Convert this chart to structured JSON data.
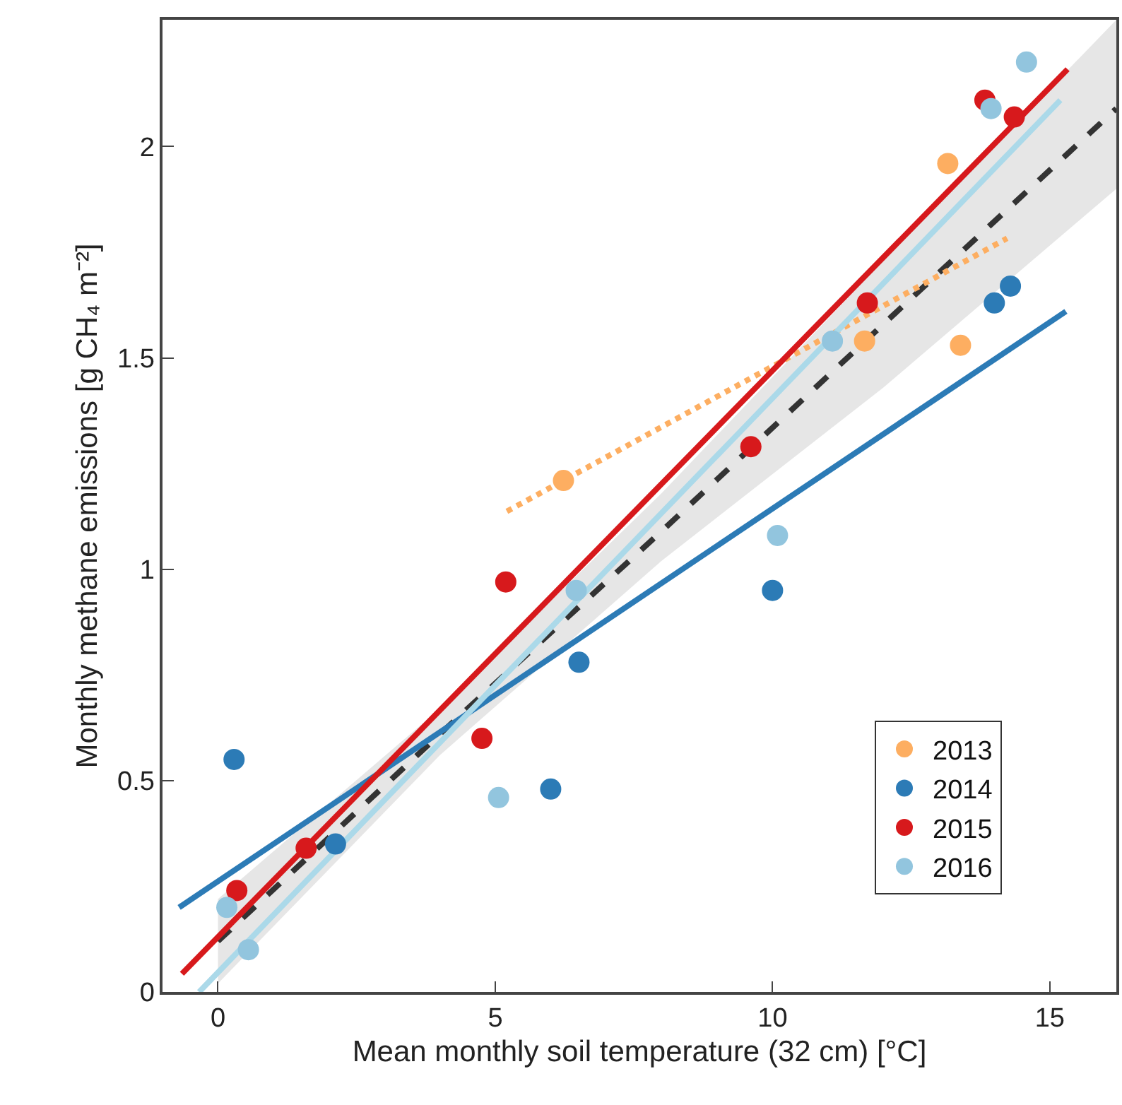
{
  "chart_data": {
    "type": "scatter",
    "xlabel": "Mean monthly soil temperature (32 cm) [°C]",
    "ylabel": "Monthly methane emissions [g CH₄ m⁻²]",
    "xlim": [
      -1,
      16.2
    ],
    "ylim": [
      0,
      2.3
    ],
    "xticks": [
      0,
      5,
      10,
      15
    ],
    "yticks": [
      0,
      0.5,
      1,
      1.5,
      2
    ],
    "legend": "bottom right",
    "series": [
      {
        "type": "line",
        "color": "#333333",
        "line_style": "dashed",
        "marker": "none",
        "x": [
          0,
          4,
          8,
          12,
          16.2
        ],
        "values": [
          0.12,
          0.61,
          1.09,
          1.58,
          2.09
        ],
        "lower": [
          0.02,
          0.56,
          1.02,
          1.43,
          1.9
        ],
        "upper": [
          0.22,
          0.67,
          1.18,
          1.73,
          2.3
        ]
      },
      {
        "type": "line",
        "color": "#fdae61",
        "line_style": "dotted",
        "marker": "none",
        "x": [
          5.21,
          14.23
        ],
        "values": [
          1.137,
          1.783
        ]
      },
      {
        "type": "line",
        "color": "#2c7bb6",
        "line_style": "solid",
        "marker": "none",
        "x": [
          -0.7,
          15.29
        ],
        "values": [
          0.2,
          1.61
        ]
      },
      {
        "type": "line",
        "color": "#abd9e9",
        "line_style": "solid",
        "marker": "none",
        "x": [
          -0.34,
          15.19
        ],
        "values": [
          0.0,
          2.11
        ]
      },
      {
        "type": "line",
        "color": "#d7191c",
        "line_style": "solid",
        "marker": "none",
        "x": [
          -0.65,
          15.32
        ],
        "values": [
          0.043,
          2.183
        ]
      },
      {
        "name": "2013",
        "marker": "circle",
        "color": "#fdae61",
        "x": [
          6.23,
          13.16,
          11.66,
          13.39
        ],
        "values": [
          1.21,
          1.96,
          1.54,
          1.53
        ]
      },
      {
        "name": "2014",
        "marker": "circle",
        "color": "#2c7bb6",
        "x": [
          0.29,
          0.37,
          2.12,
          6.0,
          6.51,
          10.0,
          14.0,
          14.29
        ],
        "values": [
          0.55,
          null,
          0.35,
          0.48,
          0.78,
          0.95,
          1.63,
          1.67
        ]
      },
      {
        "name": "2015",
        "marker": "circle",
        "color": "#d7191c",
        "x": [
          0.34,
          1.59,
          4.76,
          5.19,
          9.61,
          11.71,
          13.83,
          14.36
        ],
        "values": [
          0.24,
          0.34,
          0.6,
          0.97,
          1.29,
          1.63,
          2.11,
          2.07
        ]
      },
      {
        "name": "2016",
        "marker": "circle",
        "color": "#92c5de",
        "x": [
          0.16,
          0.55,
          5.06,
          6.46,
          10.09,
          11.08,
          13.94,
          14.58
        ],
        "values": [
          0.2,
          0.1,
          0.46,
          0.95,
          1.08,
          1.54,
          2.09,
          2.2
        ]
      }
    ]
  }
}
